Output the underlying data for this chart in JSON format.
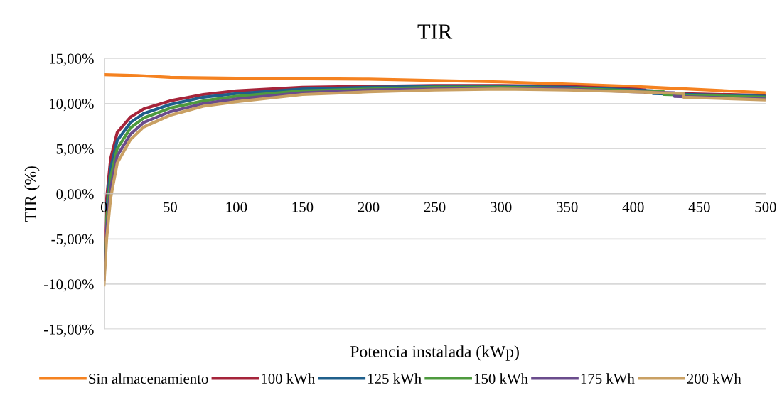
{
  "chart_data": {
    "type": "line",
    "title": "TIR",
    "xlabel": "Potencia instalada (kWp)",
    "ylabel": "TIR (%)",
    "xlim": [
      0,
      500
    ],
    "xticks": [
      0,
      50,
      100,
      150,
      200,
      250,
      300,
      350,
      400,
      450,
      500
    ],
    "ylim": [
      -15,
      15
    ],
    "yticks": [
      {
        "value": -15,
        "label": "-15,00%"
      },
      {
        "value": -10,
        "label": "-10,00%"
      },
      {
        "value": -5,
        "label": "-5,00%"
      },
      {
        "value": 0,
        "label": "0,00%"
      },
      {
        "value": 5,
        "label": "5,00%"
      },
      {
        "value": 10,
        "label": "10,00%"
      },
      {
        "value": 15,
        "label": "15,00%"
      }
    ],
    "grid": "y",
    "legend": "bottom",
    "marker": "none",
    "line_style": "solid",
    "series": [
      {
        "name": "Sin almacenamiento",
        "color": "#f58220",
        "x": [
          0,
          25,
          50,
          100,
          200,
          300,
          400,
          500
        ],
        "values": [
          13.2,
          13.1,
          12.9,
          12.8,
          12.7,
          12.4,
          11.9,
          11.2
        ]
      },
      {
        "name": "100 kWh",
        "color": "#a5243a",
        "x": [
          0,
          2,
          5,
          10,
          20,
          30,
          50,
          75,
          100,
          150,
          200,
          250,
          300,
          350,
          400,
          409,
          409,
          500
        ],
        "values": [
          -7.4,
          -0.5,
          3.9,
          6.8,
          8.5,
          9.4,
          10.3,
          11.0,
          11.4,
          11.8,
          11.9,
          12.0,
          12.0,
          11.9,
          11.6,
          11.5,
          11.2,
          10.9
        ]
      },
      {
        "name": "125 kWh",
        "color": "#1f5f8b",
        "x": [
          2,
          5,
          10,
          20,
          30,
          50,
          75,
          100,
          150,
          200,
          250,
          300,
          350,
          400,
          415,
          415,
          500
        ],
        "values": [
          -1.6,
          2.8,
          5.9,
          7.9,
          8.9,
          9.9,
          10.7,
          11.1,
          11.6,
          11.8,
          11.9,
          11.9,
          11.8,
          11.5,
          11.4,
          11.1,
          10.8
        ]
      },
      {
        "name": "150 kWh",
        "color": "#4e9a3e",
        "x": [
          0,
          2,
          5,
          10,
          20,
          30,
          50,
          75,
          100,
          150,
          200,
          250,
          300,
          350,
          400,
          423,
          423,
          500
        ],
        "values": [
          -8.8,
          -2.8,
          1.8,
          5.0,
          7.3,
          8.4,
          9.5,
          10.3,
          10.8,
          11.4,
          11.6,
          11.8,
          11.8,
          11.7,
          11.4,
          11.3,
          11.0,
          10.7
        ]
      },
      {
        "name": "175 kWh",
        "color": "#6a4c8c",
        "x": [
          0,
          2,
          5,
          10,
          20,
          30,
          50,
          75,
          100,
          150,
          200,
          250,
          300,
          350,
          400,
          431,
          431,
          500
        ],
        "values": [
          -9.5,
          -3.9,
          0.6,
          4.2,
          6.6,
          7.9,
          9.1,
          10.0,
          10.5,
          11.2,
          11.5,
          11.6,
          11.7,
          11.6,
          11.3,
          11.2,
          10.8,
          10.5
        ]
      },
      {
        "name": "200 kWh",
        "color": "#c9a063",
        "x": [
          0,
          2,
          5,
          10,
          20,
          30,
          50,
          75,
          100,
          150,
          200,
          250,
          300,
          350,
          400,
          438,
          438,
          500
        ],
        "values": [
          -10.1,
          -5.0,
          -0.5,
          3.4,
          6.0,
          7.4,
          8.7,
          9.7,
          10.2,
          11.0,
          11.3,
          11.5,
          11.6,
          11.5,
          11.3,
          11.1,
          10.7,
          10.4
        ]
      }
    ]
  }
}
